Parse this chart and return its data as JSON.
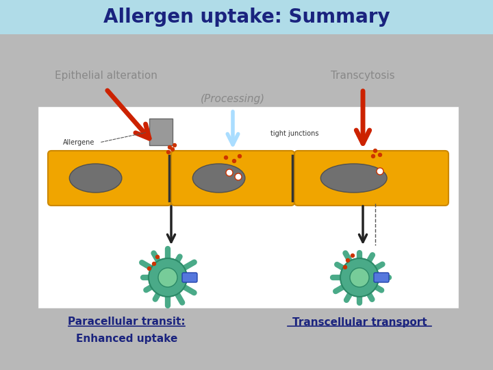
{
  "title": "Allergen uptake: Summary",
  "title_color": "#1a237e",
  "title_bg_color": "#b0dce8",
  "bg_color": "#c8c8c8",
  "diagram_bg": "#ffffff",
  "label_epithelial": "Epithelial alteration",
  "label_transcytosis": "Transcytosis",
  "label_processing": "(Processing)",
  "label_allergene": "Allergene",
  "label_tight_junctions": "tight junctions",
  "label_paracellular": "Paracellular transit:",
  "label_enhanced": "Enhanced uptake",
  "label_transcellular": "Transcellular transport",
  "label_color_gray": "#888888",
  "label_color_blue": "#1a237e",
  "cell_fill": "#f0a500",
  "cell_outline": "#cc8800",
  "nucleus_fill": "#707070",
  "nucleus_outline": "#505050",
  "red_arrow_color": "#cc2200",
  "blue_arrow_color": "#aaddff",
  "black_arrow_color": "#222222",
  "dendritic_fill": "#4aaa88",
  "dendritic_outline": "#2a8866"
}
